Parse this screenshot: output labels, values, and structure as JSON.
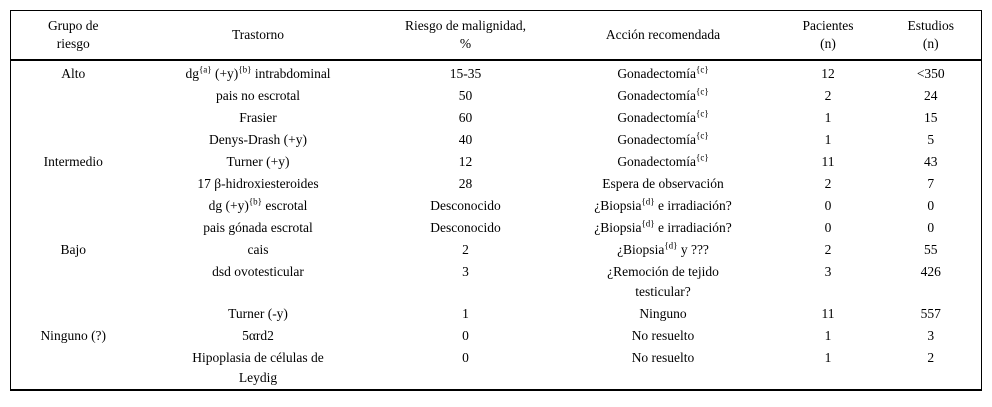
{
  "table": {
    "headers": [
      "Grupo de\nriesgo",
      "Trastorno",
      "Riesgo de malignidad,\n%",
      "Acción recomendada",
      "Pacientes\n(n)",
      "Estudios\n(n)"
    ],
    "rows": [
      {
        "cells": [
          "Alto",
          "dg^{a} (+y)^{b} intrabdominal",
          "15-35",
          "Gonadectomía^{c}",
          "12",
          "<350"
        ]
      },
      {
        "cells": [
          "",
          "pais no escrotal",
          "50",
          "Gonadectomía^{c}",
          "2",
          "24"
        ]
      },
      {
        "cells": [
          "",
          "Frasier",
          "60",
          "Gonadectomía^{c}",
          "1",
          "15"
        ]
      },
      {
        "cells": [
          "",
          "Denys-Drash (+y)",
          "40",
          "Gonadectomía^{c}",
          "1",
          "5"
        ]
      },
      {
        "cells": [
          "Intermedio",
          "Turner (+y)",
          "12",
          "Gonadectomía^{c}",
          "11",
          "43"
        ]
      },
      {
        "cells": [
          "",
          "17 β-hidroxiesteroides",
          "28",
          "Espera de observación",
          "2",
          "7"
        ]
      },
      {
        "cells": [
          "",
          "dg (+y)^{b} escrotal",
          "Desconocido",
          "¿Biopsia^{d} e irradiación?",
          "0",
          "0"
        ]
      },
      {
        "cells": [
          "",
          "pais gónada escrotal",
          "Desconocido",
          "¿Biopsia^{d} e irradiación?",
          "0",
          "0"
        ]
      },
      {
        "cells": [
          "Bajo",
          "cais",
          "2",
          "¿Biopsia^{d} y ???",
          "2",
          "55"
        ]
      },
      {
        "cells": [
          "",
          "dsd ovotesticular",
          "3",
          "¿Remoción de tejido\ntesticular?",
          "3",
          "426"
        ]
      },
      {
        "cells": [
          "",
          "Turner (-y)",
          "1",
          "Ninguno",
          "11",
          "557"
        ]
      },
      {
        "cells": [
          "Ninguno (?)",
          "5αrd2",
          "0",
          "No resuelto",
          "1",
          "3"
        ]
      },
      {
        "cells": [
          "",
          "Hipoplasia de células de\nLeydig",
          "0",
          "No resuelto",
          "1",
          "2"
        ]
      }
    ],
    "colors": {
      "text": "#000000",
      "background": "#ffffff",
      "border": "#000000"
    }
  }
}
